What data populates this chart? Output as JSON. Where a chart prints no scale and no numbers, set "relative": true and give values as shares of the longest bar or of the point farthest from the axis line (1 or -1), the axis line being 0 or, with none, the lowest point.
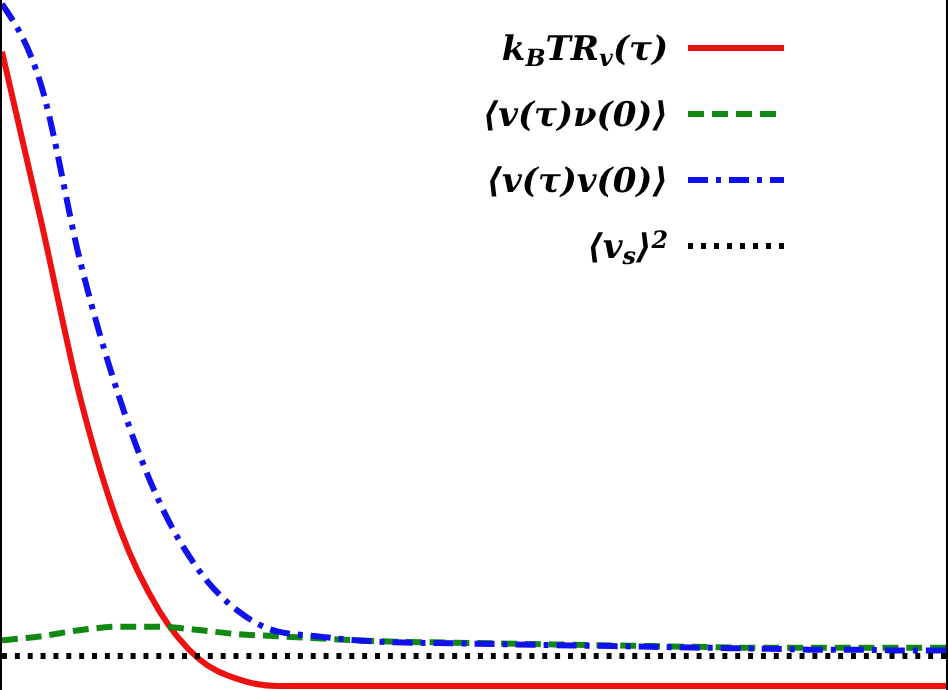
{
  "chart_data": {
    "type": "line",
    "relative": true,
    "legend": "top right",
    "categories": [
      null,
      null,
      null,
      null,
      null,
      null,
      null,
      null,
      null,
      null,
      null,
      null,
      null,
      null,
      null,
      null,
      null,
      null,
      null,
      null,
      null,
      null,
      null,
      null,
      null
    ],
    "series": [
      {
        "name": "k$_{B}$TR$_{v}$(τ)",
        "color": "#ee1111",
        "line_style": "solid",
        "values": [
          0.93,
          0.68,
          0.42,
          0.23,
          0.11,
          0.04,
          0.01,
          0,
          0,
          0,
          0,
          0,
          0,
          0,
          0,
          0,
          0,
          0,
          0,
          0,
          0,
          0,
          0,
          0,
          0
        ]
      },
      {
        "name": "⟨v(τ)ν(0)⟩",
        "color": "#118811",
        "line_style": "dashed",
        "values": [
          0.067,
          0.073,
          0.082,
          0.087,
          0.087,
          0.082,
          0.076,
          0.073,
          0.07,
          0.067,
          0.065,
          0.064,
          0.063,
          0.062,
          0.061,
          0.06,
          0.059,
          0.058,
          0.057,
          0.056,
          0.056,
          0.056,
          0.056,
          0.056,
          0.056
        ]
      },
      {
        "name": "⟨v(τ)v(0)⟩",
        "color": "#1111ee",
        "line_style": "dashdot",
        "values": [
          1.0,
          0.88,
          0.62,
          0.42,
          0.27,
          0.17,
          0.11,
          0.08,
          0.073,
          0.067,
          0.064,
          0.063,
          0.062,
          0.061,
          0.06,
          0.059,
          0.058,
          0.057,
          0.056,
          0.055,
          0.054,
          0.053,
          0.053,
          0.052,
          0.052
        ]
      },
      {
        "name": "⟨v$_{s}$⟩$^{2}$",
        "color": "#000000",
        "line_style": "dotted",
        "values": [
          0.044,
          0.044,
          0.044,
          0.044,
          0.044,
          0.044,
          0.044,
          0.044,
          0.044,
          0.044,
          0.044,
          0.044,
          0.044,
          0.044,
          0.044,
          0.044,
          0.044,
          0.044,
          0.044,
          0.044,
          0.044,
          0.044,
          0.044,
          0.044,
          0.044
        ]
      }
    ]
  }
}
